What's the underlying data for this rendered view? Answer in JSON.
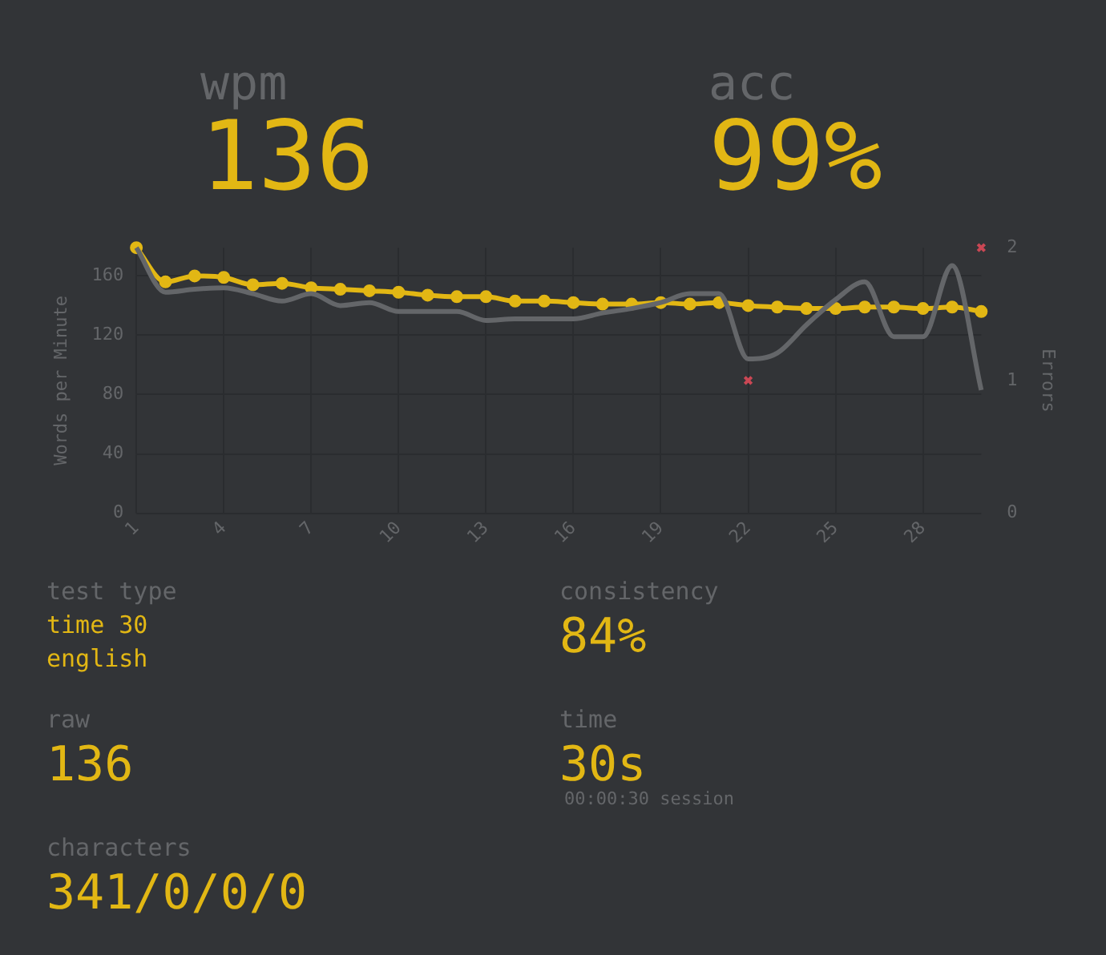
{
  "chart_data": {
    "type": "line",
    "ylabel": "Words per Minute",
    "y2label": "Errors",
    "x": [
      1,
      2,
      3,
      4,
      5,
      6,
      7,
      8,
      9,
      10,
      11,
      12,
      13,
      14,
      15,
      16,
      17,
      18,
      19,
      20,
      21,
      22,
      23,
      24,
      25,
      26,
      27,
      28,
      29,
      30
    ],
    "series": [
      {
        "color": "#646669",
        "marker": "none",
        "values": [
          179,
          149,
          151,
          152,
          148,
          143,
          148,
          140,
          142,
          136,
          136,
          136,
          130,
          131,
          131,
          131,
          135,
          138,
          142,
          148,
          148,
          104,
          108,
          127,
          144,
          156,
          119,
          119,
          167,
          83
        ]
      },
      {
        "color": "#e2b714",
        "marker": "circle",
        "values": [
          179,
          156,
          160,
          159,
          154,
          155,
          152,
          151,
          150,
          149,
          147,
          146,
          146,
          143,
          143,
          142,
          141,
          141,
          142,
          141,
          142,
          140,
          139,
          138,
          138,
          139,
          139,
          138,
          139,
          136
        ]
      },
      {
        "type": "scatter",
        "axis": "y2",
        "color": "#ca4754",
        "marker": "cross",
        "values": [
          null,
          null,
          null,
          null,
          null,
          null,
          null,
          null,
          null,
          null,
          null,
          null,
          null,
          null,
          null,
          null,
          null,
          null,
          null,
          null,
          null,
          1,
          null,
          null,
          null,
          null,
          null,
          null,
          null,
          2
        ]
      }
    ],
    "xlim": [
      1,
      30
    ],
    "xticks": [
      1,
      4,
      7,
      10,
      13,
      16,
      19,
      22,
      25,
      28
    ],
    "ylim": [
      0,
      179
    ],
    "yticks": [
      0,
      40,
      80,
      120,
      160
    ],
    "y2lim": [
      0,
      2
    ],
    "y2ticks": [
      0,
      1,
      2
    ],
    "grid": true,
    "legend": false,
    "annotations": [
      "wpm",
      "136",
      "acc",
      "99%",
      "test type",
      "time 30",
      "english",
      "raw",
      "136",
      "consistency",
      "84%",
      "time",
      "30s",
      "00:00:30 session",
      "characters",
      "341/0/0/0"
    ]
  }
}
